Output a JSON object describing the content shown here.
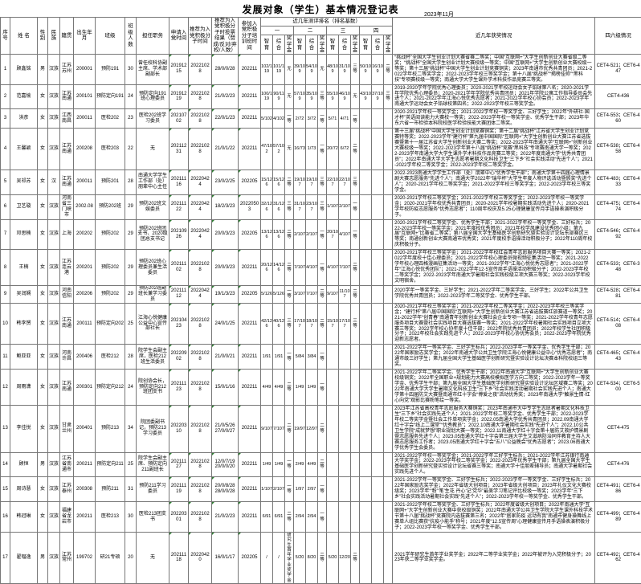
{
  "title": "发展对象（学生）基本情况登记表",
  "date": "2023年11月",
  "table": {
    "basic_headers": [
      "序号",
      "姓 名",
      "性 别",
      "民 族",
      "籍贯",
      "出生年月",
      "班级",
      "班级人数",
      "担任职务",
      "申请入党时间",
      "推荐为入党积极分子时间",
      "推荐为入党积极分子时投票结果（赞成/反对/弃权/人数）",
      "参加入党积极分子培训班时间"
    ],
    "group_header": "近几年测评排名（排名基数）",
    "groups": [
      "一",
      "二",
      "三",
      "四"
    ],
    "subcols": [
      "智育",
      "综合",
      "奖学金"
    ],
    "awards_header": "近几年获奖情况",
    "cet_header": "四六级情况",
    "rows": [
      {
        "no": "1",
        "name": "顾鑫铭",
        "gender": "男",
        "ethnicity": "汉族",
        "native_place": "江苏苏州",
        "birth": "200001",
        "class": "预防191",
        "class_size": "30",
        "position": "曾任校科协副主席、学术部副部长",
        "apply_time": "20191215",
        "recommend_time": "20221028",
        "vote_result": "28/0/0/28",
        "training_time": "202211",
        "ranks": [
          [
            "102/119",
            "101/119",
            "无"
          ],
          [
            "39/109",
            "54/109",
            "无"
          ],
          [
            "48/109",
            "31/109",
            "三等"
          ],
          [
            "50/109",
            "16/109",
            "二等"
          ]
        ],
        "awards": "“挑战杯”全国大学生创业计划大赛省赛二等奖；中国“互联网+”大学生创新创业大赛省级二等奖；“挑战杯”全国大学生创业计划大赛校级一等奖；中国“互联网+”大学生创新创业大赛校级一等奖；第十三届“挑战杯”中国大学生创业计划竞赛铜奖；2023年南通市优秀共青团员；2021-2022学年校二等奖学金；2022-2023学年校三等奖学金；第十八届“挑战杯”“揭榜挂帅”“黑科技”专项赛校级一等奖；南通大学大学生课外学术科技作品竞赛三等奖。",
        "cet": "CET4-521；CET6-447"
      },
      {
        "no": "2",
        "name": "范嘉愉",
        "gender": "女",
        "ethnicity": "汉族",
        "native_place": "江苏南通",
        "birth": "200101",
        "class": "预防定向191",
        "class_size": "24",
        "position": "预防定向191班心理委员",
        "apply_time": "20191219",
        "recommend_time": "20221028",
        "vote_result": "21/0/2/23",
        "training_time": "202211",
        "ranks": [
          [
            "100/119",
            "90/119",
            "无"
          ],
          [
            "57/109",
            "35/109",
            "三等"
          ],
          [
            "55/109",
            "46/109",
            "无"
          ],
          [
            "43/109",
            "37/109",
            "三等"
          ]
        ],
        "awards": "2019-2020学年学院优秀心理委员；2020-2021学年校运动会女子铅球第八名；2020-2021学年学院优秀心理委员；2020-2021学年学院优秀共青团员；2021年学院公寓工作指导委员会先进个人；2021-2022学年江海心悦优秀志愿者；2021-2022学年校心协会员；2022-2023学年南通大学运动会女子铅球校第四名；2022-2023学年校三等奖学金。",
        "cet": "CET4-436"
      },
      {
        "no": "3",
        "name": "洪彦",
        "gender": "女",
        "ethnicity": "汉族",
        "native_place": "江西南昌",
        "birth": "200011",
        "class": "医检202",
        "class_size": "23",
        "position": "医检202班学习委员",
        "apply_time": "20210702",
        "recommend_time": "20221028",
        "vote_result": "22/0/1/23",
        "training_time": "202211",
        "ranks": [
          [
            "5/102",
            "4/102",
            "一等"
          ],
          [
            "2/72",
            "3/72",
            "一等"
          ],
          [
            "5/71",
            "4/71",
            "一等"
          ],
          [
            "",
            "",
            ""
          ]
        ],
        "awards": "2020-2021学年校一等奖学金；2021-2022学年校一等奖学金、三好学生；2022年“外研社·国才杯”英语阅读能力大赛校一等奖；2022-2023学年校一等奖学金、优秀学生干部；2023年华东六省一市检验本科院校医学检验技能大赛团体二等奖。",
        "cet": "CET4-553；CET6-460"
      },
      {
        "no": "4",
        "name": "王馨颖",
        "gender": "女",
        "ethnicity": "汉族",
        "native_place": "江苏南通",
        "birth": "200208",
        "class": "医检203",
        "class_size": "22",
        "position": "无",
        "apply_time": "20211231",
        "recommend_time": "20221028",
        "vote_result": "21/0/1/22",
        "training_time": "202211",
        "ranks": [
          [
            "47/102",
            "57/102",
            "无"
          ],
          [
            "16/73",
            "1/73",
            "一等"
          ],
          [
            "20/72",
            "6/72",
            "二等"
          ],
          [
            "",
            "",
            ""
          ]
        ],
        "awards": "第十三届“挑战杯”中国大学生创业计划竞赛铜奖；第十二届“挑战杯”江苏省大学生创业计划竞赛特等奖；2022-2023学年“建行杯”第九届中国国际“互联网+”大学生创新创业大赛江苏省选拔赛暨第十一届江苏省大学生创新创业大赛二等奖；2022-2023学年南通大学“互联网+”创新创业大赛校级一等奖；2022-2023学年第十八届“挑战杯”竞赛“黑科技”专项赛南通大学一等奖；2022-2023学年南通大学大学生课外学术科技作品竞赛三等奖；2022年度南通大学“优秀共青团员”；2022年南通大学大学生志愿者暑期文化科技卫生“三下乡”社会实践活动“先进个人”；2021-2022学年校二等奖学金；2022-2023学年校二等奖学金。",
        "cet": "CET4-538；CET6-458"
      },
      {
        "no": "5",
        "name": "吴祁苏",
        "gender": "女",
        "ethnicity": "汉",
        "native_place": "江苏南通",
        "birth": "200011",
        "class": "预防201",
        "class_size": "28",
        "position": "南通大学学生工作部（处）朋辈中心主任",
        "apply_time": "20211116",
        "recommend_time": "20220424",
        "vote_result": "23/0/2/25",
        "training_time": "202205",
        "ranks": [
          [
            "15/126",
            "15/126",
            "二等"
          ],
          [
            "19/107",
            "19/107",
            "三等"
          ],
          [
            "22/107",
            "22/107",
            "三等"
          ],
          [
            "",
            "",
            ""
          ]
        ],
        "awards": "2022-2023南通大学学生工作部（处）朋辈中心“优秀学生干部”；南通大学第十四届心理情景剧大赛志愿服务“先进个人”；南通大学2022年“瑞华杯”大学生年度人物评选活动暨颁奖“先进个人”；2020-2021学年校二等奖学金；2021-2022学年校三等奖学金；2022-2023学年校三等奖学金。",
        "cet": "CET4-483；CET6-433"
      },
      {
        "no": "6",
        "name": "卫艺璇",
        "gender": "女",
        "ethnicity": "汉族",
        "native_place": "河南省三门峡市",
        "birth": "2002.08",
        "class": "预防202班",
        "class_size": "29",
        "position": "预防202班文娱委员",
        "apply_time": "20211122",
        "recommend_time": "20220424",
        "vote_result": "18/2/3/23",
        "training_time": "20220503",
        "ranks": [
          [
            "32/126",
            "31/126",
            "三等"
          ],
          [
            "31/107",
            "23/107",
            "三等"
          ],
          [
            "1/107",
            "2/107",
            "一等"
          ],
          [
            "",
            "",
            ""
          ]
        ],
        "awards": "2020-2021学年校三等奖学金；2021-2022学年校三等奖学金；2022-2023学年校一等奖学金；2020-2021学年校优秀共青团员；2020-2021学年校暑期实践活动先进个人；2020-2021学年校防疫志愿服务“优秀志愿者”；110周年校庆及5.25心理健康宣传月手语操表演积极分子。",
        "cet": "CET4-475；CET6-474"
      },
      {
        "no": "7",
        "name": "邓思楠",
        "gender": "女",
        "ethnicity": "汉族",
        "native_place": "上海",
        "birth": "200202",
        "class": "预防202",
        "class_size": "29",
        "position": "预防202班团支书、2020级团总支书记",
        "apply_time": "20210926",
        "recommend_time": "20220424",
        "vote_result": "20/0/3/23",
        "training_time": "202205",
        "ranks": [
          [
            "13/126",
            "13/126",
            "二等"
          ],
          [
            "2/107",
            "2/107",
            "一等"
          ],
          [
            "20/107",
            "4/107",
            "一等"
          ],
          [
            "",
            "",
            ""
          ]
        ],
        "awards": "2020-2021学年校二等奖学金、优秀学生干部；2021-2022学年校一等奖学金、三好标兵；2022-2023学年校一等奖学金；2021年度校优秀团员；2021年校学风建设优秀团小组；第九届“互联网+”比赛省二等奖；第八届全国大学生基础医学创新研究暨实验设计论坛东部赛区三等奖；南通创新创业大赛南通市优秀奖；2021年度校手语操活动积极分子；2022年110周年校庆积极分子。",
        "cet": "CET4-546；CET6-492"
      },
      {
        "no": "8",
        "name": "王楠",
        "gender": "女",
        "ethnicity": "汉族",
        "native_place": "江苏连云港",
        "birth": "200201",
        "class": "预防202",
        "class_size": "29",
        "position": "预防202班心理委员兼生活委员",
        "apply_time": "20211102",
        "recommend_time": "20221028",
        "vote_result": "20/0/3/23",
        "training_time": "202211",
        "ranks": [
          [
            "20/126",
            "14/126",
            "二等"
          ],
          [
            "7/107",
            "4/107",
            "一等"
          ],
          [
            "4/107",
            "7/107",
            "二等"
          ],
          [
            "",
            "",
            ""
          ]
        ],
        "awards": "2020-2021学年校三等奖学金；2021-2022学年校红会青年志愿服务项目大赛一等奖；2021-2022学年度校十佳心理委员；2021-2022学年校心理委员微视频征集活动一等奖；2021-2022学年校心理四格漫画征集活动一等奖；2021-2022学年“江海心悦优秀志愿者”；2021-2022学年“江海心悦优秀团队”；2021-2022学年12·5宣传周手语操活动积极分子；2022-2023学年校二等奖学金；2022-2023学年南通大学暑期社会实践校级立项大赛三等奖；2022-2023学年校文明宿舍。",
        "cet": "CET4-533；CET6-348"
      },
      {
        "no": "9",
        "name": "吴润娴",
        "gender": "女",
        "ethnicity": "汉族",
        "native_place": "河南信阳",
        "birth": "200206",
        "class": "预防202",
        "class_size": "29",
        "position": "预防202班副班长兼学习委员",
        "apply_time": "20211112",
        "recommend_time": "20220424",
        "vote_result": "19/1/3/23",
        "training_time": "202205",
        "ranks": [
          [
            "5/126",
            "5/126",
            "一等"
          ],
          [
            "3/107",
            "7/107",
            "二等"
          ],
          [
            "9/107",
            "11/107",
            "二等"
          ],
          [
            "",
            "",
            ""
          ]
        ],
        "awards": "2020学年一等奖学金、三好学生；2021-2022学年二等奖学金、三好学生；2022年公共卫生学院优秀共青团员；2022-2023学年二等奖学金、优秀学生干部。",
        "cet": "CET4-528；CET6-481"
      },
      {
        "no": "10",
        "name": "韩李赟",
        "gender": "女",
        "ethnicity": "汉族",
        "native_place": "江苏南通",
        "birth": "200111",
        "class": "预防定向202",
        "class_size": "25",
        "position": "江海心悦健康公益中心宣传部社长",
        "apply_time": "20210423",
        "recommend_time": "20221028",
        "vote_result": "24/0/1/25",
        "training_time": "202211",
        "ranks": [
          [
            "42/126",
            "40/126",
            "三等"
          ],
          [
            "17/107",
            "18/107",
            "二等"
          ],
          [
            "15/107",
            "17/107",
            "三等"
          ],
          [
            "",
            "",
            ""
          ]
        ],
        "awards": "2020-2021学年校三等奖学金；2021-2022学年校二等奖学金；2022-2023学年校三等奖学金；“建行杯”第八届中国国际“互联网+”大学生创新创业大赛江苏省选拔赛红旅赛道一等奖；2021-2022学年“创青春”南通青年创新创业大赛社会企业专项一等奖；2021-2022学年校青年志愿服务项目大赛暨社会实践项目大赛选拔赛一等奖；2021-2022学年校暑期社会实践项目立项大赛三等奖；2022学年校心协年度十佳干部；2022年院优秀共青团员；2022年校学生社团积极分子；2022年校社会实践先进个人；2022-2023学年校心协优秀会员；2022-2023学年院优秀迎新志愿者。",
        "cet": "CET4-514；CET6-408"
      },
      {
        "no": "11",
        "name": "鲍亚亚",
        "gender": "女",
        "ethnicity": "汉族",
        "native_place": "河南许昌",
        "birth": "200406",
        "class": "医检212",
        "class_size": "28",
        "position": "院学生会副主席，医检212班生活委员",
        "apply_time": "20220902",
        "recommend_time": "20221028",
        "vote_result": "21/0/0/21",
        "training_time": "202211",
        "ranks": [
          [
            "1/91",
            "1/91",
            "一等"
          ],
          [
            "5/84",
            "3/84",
            "一等"
          ],
          [
            "",
            "",
            ""
          ],
          [
            "",
            "",
            ""
          ]
        ],
        "awards": "2021-2022学年一等奖学金、三好学生标兵；2022-2023学年一等奖学金、优秀学生干部；2022年国家励志奖学金；2022年南通大学公共卫生学院江海心悦健康公益中心“优秀志愿者”；南通市级三好学生；第九届全国大学生基础医学创新研究暨实验设计论坛决赛本科院校组三等奖。",
        "cet": "CET4-465；CET6-443"
      },
      {
        "no": "12",
        "name": "周雨潇",
        "gender": "女",
        "ethnicity": "汉族",
        "native_place": "江苏南通",
        "birth": "200301",
        "class": "预防定向212",
        "class_size": "24",
        "position": "院创协会长，预防定向212班团支书",
        "apply_time": "20211123",
        "recommend_time": "20221028",
        "vote_result": "15/0/1/16",
        "training_time": "202211",
        "ranks": [
          [
            "4/49",
            "4/49",
            "二等"
          ],
          [
            "1/49",
            "1/49",
            "一等"
          ],
          [
            "",
            "",
            ""
          ],
          [
            "",
            "",
            ""
          ]
        ],
        "awards": "2021-2022学年二等奖学金、优秀学生干部；2022年南通大学“互联网+”大学生创新创业大赛校级铜奖；2022年全国职业+规划能力大赛高校模拟医学方向二等奖；2022-2023学年一等奖学金、优秀学生干部；第九届全国大学生基础医学创新研究暨实验设计论坛区域赛二等奖；2022年南通大学大学生暑期文化科技卫生“三下乡”社会实践活动暑期社会实践先进个人；南通大学第十四届防艾大赛暨南通市红十字会“博爱之夜”活动优秀奖；2023年南通大学“触景生情·红心向党”观影比赛粉笔绘一等奖。",
        "cet": "CET4-534；CET6-500"
      },
      {
        "no": "13",
        "name": "李佳悦",
        "gender": "女",
        "ethnicity": "汉族",
        "native_place": "甘肃兰州",
        "birth": "200401",
        "class": "预防213",
        "class_size": "34",
        "position": "院团委副书记，预防213学习委员",
        "apply_time": "20220310",
        "recommend_time": "20221028",
        "vote_result": "21/0/5/26 27/0/0/27",
        "training_time": "202211",
        "ranks": [
          [
            "9/107",
            "7/107",
            "二等"
          ],
          [
            "19/97",
            "12/97",
            "二等"
          ],
          [
            "",
            "",
            ""
          ],
          [
            "",
            "",
            ""
          ]
        ],
        "awards": "2023年江苏省高校青年志愿服务大赛铜奖；2023年南通市大中专学生志愿者暑期文化科技卫生“三下乡”社会实践先进个人；2021-2022学年校二等奖学金、优秀学生干部；2022-2023学年校二等奖学金暨社会工作单项奖学金；2022.05南通大学优秀共青团员；2022.09南通大学红十字会“线上二课堂”“优秀教员”；2022.10南通大学暑期社会实践“先进个人”；2022.10公共卫生学院“成就梦想”职业规划大赛一等奖；2022.11南通大学红十字会第十届防艾救护情景剧暨志愿服务先进个人；2023.05南通大学红十字会第三届大学生艾滋病防治同伴教育主持人大赛志愿服务工作者；2023.05南通大学红十字会“五八”公益晚会“优秀志愿者”；2023.06南通大学优秀学生会委员。",
        "cet": "CET4-475"
      },
      {
        "no": "14",
        "name": "顾恒",
        "gender": "男",
        "ethnicity": "汉族",
        "native_place": "江苏省南通市",
        "birth": "200211",
        "class": "预防定向211",
        "class_size": "25",
        "position": "院学生会副主席、预防定向211副班长",
        "apply_time": "20211127",
        "recommend_time": "20221028",
        "vote_result": "12/0/7/19 20/0/0/20",
        "training_time": "202211",
        "ranks": [
          [
            "1/49",
            "1/49",
            "一等"
          ],
          [
            "2/49",
            "4/49",
            "二等"
          ],
          [
            "",
            "",
            ""
          ],
          [
            "",
            "",
            ""
          ]
        ],
        "awards": "2021-2022学年校一等奖学金；2021-2022学年三好学生标兵；2021-2022学年江苏银行南通大学奖学金；2022-2023学年校二等奖学金；2022-2023年优秀学生干部；第九届全国大学生基础医学创新研究暨实验设计论坛省赛三等奖；南通大学十佳朋辈辅导员；南通大学暑期社会实践先进个人。",
        "cet": "CET4-476"
      },
      {
        "no": "15",
        "name": "周诗慧",
        "gender": "女",
        "ethnicity": "汉族",
        "native_place": "江苏泰州",
        "birth": "200308",
        "class": "预防211",
        "class_size": "31",
        "position": "预防211学习委员",
        "apply_time": "20211119",
        "recommend_time": "20221028",
        "vote_result": "20/0/8/28 28/0/0/28",
        "training_time": "202211",
        "ranks": [
          [
            "1/107",
            "2/107",
            "一等"
          ],
          [
            "1/97",
            "2/97",
            "一等"
          ],
          [
            "",
            "",
            ""
          ],
          [
            "",
            "",
            ""
          ]
        ],
        "awards": "2021-2022学年一等奖学金、三好学生标兵；2022-2023学年一等奖学金、三好学生标兵；2022年国家励志奖学金；2022年省级大创项目；2023年省级大创项目；2023年礼仪文化大赛校级奖；2023学年“‘粉’‘笔’生花 丹心‘记’党华”最美学习笔记评比校级一等奖；2023学年“三下乡”社会实践活动暑期社会实践“先进个人”；2022-2023学年校一等奖学金、优秀学生干部。",
        "cet": "CET4-491；CET6-486"
      },
      {
        "no": "16",
        "name": "韩冠琳",
        "gender": "女",
        "ethnicity": "汉族",
        "native_place": "福建省龙岩市",
        "birth": "200211",
        "class": "医检213",
        "class_size": "30",
        "position": "医检213团支书",
        "apply_time": "20220301",
        "recommend_time": "20221028",
        "vote_result": "21/0/2/23",
        "training_time": "202211",
        "ranks": [
          [
            "6/91",
            "6/91",
            "二等"
          ],
          [
            "2/94",
            "2/94",
            "一等"
          ],
          [
            "",
            "",
            ""
          ],
          [
            "",
            "",
            ""
          ]
        ],
        "awards": "2021-2022学年校二等奖学金、三好学生标兵；2022年度省级大创项目；2022年南通大学“互联网+”大学生创新创业大赛中获校级铜奖；2022年南通大学公共卫生学院大学生课外科技学术节第十八届“挑战杯”竞赛院内选拔赛第三名；2022年“居家防疫 运动有我”南通市健身操舞线上赛单人组比赛获“抗疫小能手”称号；2021年度“12.5宣传周”心理健康宣传月手语操表演积极分子；2022-2023学年校一等奖学金、优秀学生干部。",
        "cet": "CET4-499；CET6-489"
      },
      {
        "no": "17",
        "name": "翟韫逸",
        "gender": "男",
        "ethnicity": "汉族",
        "native_place": "江苏常州",
        "birth": "199702",
        "class": "研21专硕",
        "class_size": "20",
        "position": "无",
        "apply_time": "20211118",
        "recommend_time": "20220420",
        "vote_result": "16/0/1/17",
        "training_time": "202205",
        "ranks": [
          [
            "/",
            "/",
            "研究生首年学业奖学金"
          ],
          [
            "5/20",
            "8/20",
            "二等"
          ],
          [
            "5/20",
            "12/20",
            "二等"
          ],
          [
            "",
            "",
            ""
          ]
        ],
        "awards": "2021学年研究生首年学业奖学金；2022年二等学业奖学金；2022年被评为入党积极分子；2023年获二等学业奖学金。",
        "cet": "CET4-492；CET6-462"
      }
    ]
  }
}
